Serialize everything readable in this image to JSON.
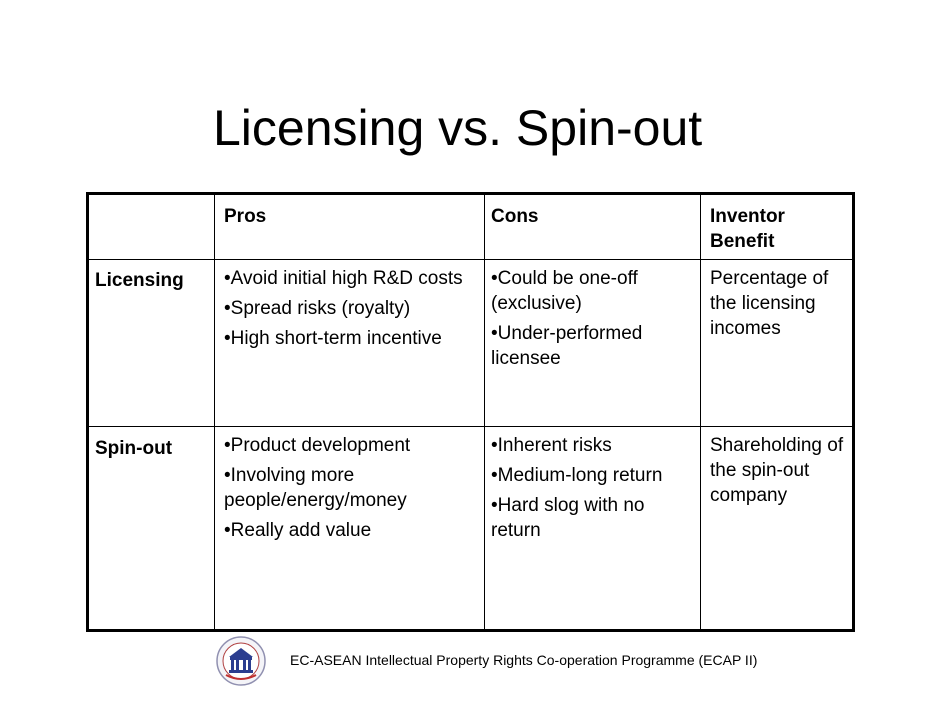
{
  "title": "Licensing vs. Spin-out",
  "table": {
    "headers": [
      "",
      "Pros",
      "Cons",
      "Inventor Benefit"
    ],
    "rows": [
      {
        "label": "Licensing",
        "pros": [
          "•Avoid initial high R&D costs",
          "•Spread risks (royalty)",
          "•High short-term incentive"
        ],
        "cons": [
          "•Could be one-off (exclusive)",
          "•Under-performed licensee"
        ],
        "benefit": "Percentage of the licensing incomes"
      },
      {
        "label": "Spin-out",
        "pros": [
          "•Product development",
          "•Involving more people/energy/money",
          "•Really add value"
        ],
        "cons": [
          "•Inherent risks",
          "•Medium-long return",
          "•Hard slog with no return"
        ],
        "benefit": "Shareholding of the spin-out company"
      }
    ]
  },
  "footer": "EC-ASEAN Intellectual Property Rights Co-operation Programme (ECAP II)",
  "logo_icon": "ecap-logo-icon"
}
